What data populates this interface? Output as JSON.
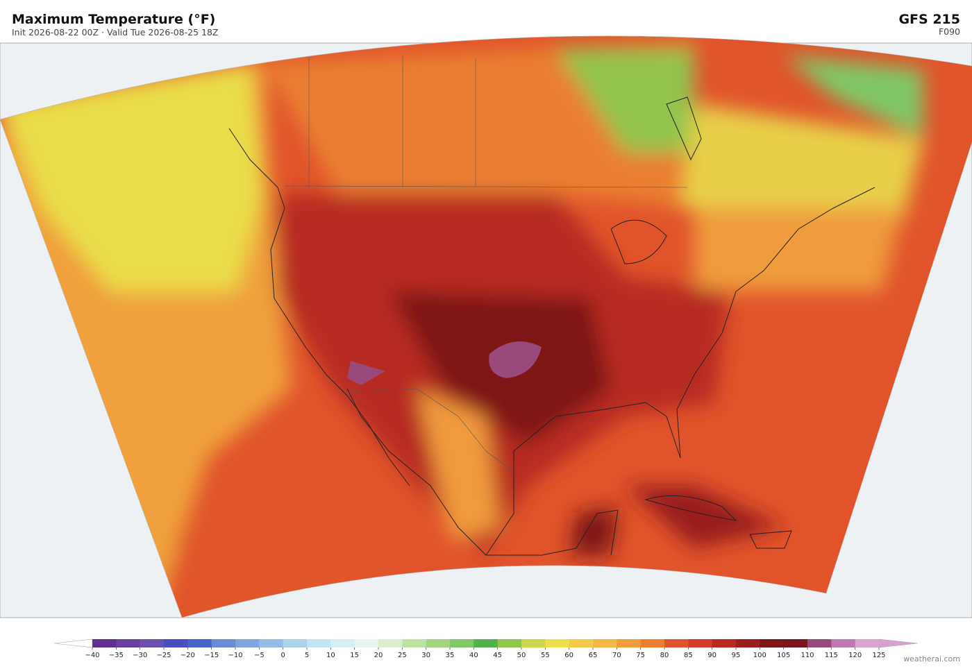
{
  "header": {
    "title": "Maximum Temperature  (°F)",
    "subtitle": "Init 2026-08-22 00Z  ·  Valid Tue 2026-08-25 18Z",
    "model": "GFS  215",
    "forecast": "F090"
  },
  "colorbar": {
    "ticks": [
      {
        "value": -40,
        "label": "−40"
      },
      {
        "value": -35,
        "label": "−35"
      },
      {
        "value": -30,
        "label": "−30"
      },
      {
        "value": -25,
        "label": "−25"
      },
      {
        "value": -20,
        "label": "−20"
      },
      {
        "value": -15,
        "label": "−15"
      },
      {
        "value": -10,
        "label": "−10"
      },
      {
        "value": -5,
        "label": "−5"
      },
      0,
      5,
      10,
      15,
      20,
      25,
      30,
      35,
      40,
      45,
      50,
      55,
      60,
      65,
      70,
      75,
      80,
      85,
      90,
      95,
      100,
      105,
      110,
      115,
      120,
      125
    ],
    "colors": [
      "#5e3191",
      "#6b3f9f",
      "#6d4fb0",
      "#4a4cbf",
      "#4a63c9",
      "#6a8bd6",
      "#7fa6dc",
      "#94bde3",
      "#aad3ea",
      "#c5e3f0",
      "#d8eef3",
      "#e6f5ee",
      "#d8eecd",
      "#bfe2a3",
      "#a3d580",
      "#80c866",
      "#52b04c",
      "#93c44e",
      "#cbd64e",
      "#eddf4b",
      "#f2c94a",
      "#f5b744",
      "#f09b3c",
      "#ea7f32",
      "#e1542b",
      "#d33c26",
      "#b72a22",
      "#981e1f",
      "#7e1719",
      "#7a141e",
      "#9a4a7a",
      "#bf79b0",
      "#d9a6cf"
    ],
    "under_color": "#ffffff",
    "over_color": "#d7a2cf"
  },
  "watermark": "weatherai.com"
}
